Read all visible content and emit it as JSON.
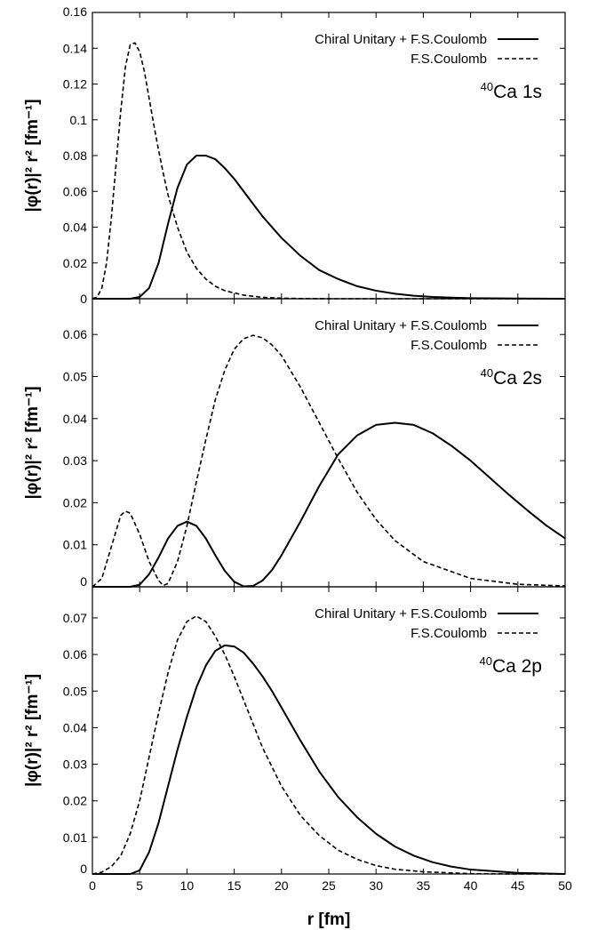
{
  "chart_data": [
    {
      "type": "line",
      "panel_label": {
        "sup": "40",
        "text": "Ca 1s"
      },
      "ylabel": "|φ(r)|² r² [fm⁻¹]",
      "xlim": [
        0,
        50
      ],
      "ylim": [
        0,
        0.16
      ],
      "yticks": [
        "0",
        "0.02",
        "0.04",
        "0.06",
        "0.08",
        "0.1",
        "0.12",
        "0.14",
        "0.16"
      ],
      "yticks_values": [
        0,
        0.02,
        0.04,
        0.06,
        0.08,
        0.1,
        0.12,
        0.14,
        0.16
      ],
      "legend": "top-right",
      "series": [
        {
          "name": "Chiral Unitary + F.S.Coulomb",
          "style": "solid",
          "x": [
            0,
            3,
            4,
            5,
            6,
            7,
            8,
            9,
            10,
            11,
            12,
            13,
            14,
            15,
            16,
            17,
            18,
            20,
            22,
            24,
            26,
            28,
            30,
            32,
            34,
            36,
            38,
            40,
            45,
            50
          ],
          "y": [
            0,
            0,
            0,
            0.001,
            0.006,
            0.02,
            0.042,
            0.062,
            0.075,
            0.08,
            0.08,
            0.078,
            0.073,
            0.067,
            0.06,
            0.053,
            0.046,
            0.034,
            0.024,
            0.016,
            0.011,
            0.007,
            0.0045,
            0.0028,
            0.0017,
            0.001,
            0.0006,
            0.0003,
            0.0001,
            0
          ]
        },
        {
          "name": "F.S.Coulomb",
          "style": "dashed",
          "x": [
            0,
            0.5,
            1,
            1.5,
            2,
            2.5,
            3,
            3.5,
            4,
            4.5,
            5,
            5.5,
            6,
            6.5,
            7,
            7.5,
            8,
            9,
            10,
            11,
            12,
            13,
            14,
            16,
            18,
            20,
            22,
            25,
            30,
            50
          ],
          "y": [
            0,
            0.001,
            0.006,
            0.02,
            0.045,
            0.075,
            0.105,
            0.13,
            0.142,
            0.143,
            0.138,
            0.127,
            0.112,
            0.097,
            0.083,
            0.07,
            0.058,
            0.04,
            0.026,
            0.017,
            0.011,
            0.007,
            0.0045,
            0.002,
            0.0008,
            0.0003,
            0.0001,
            0,
            0,
            0
          ]
        }
      ]
    },
    {
      "type": "line",
      "panel_label": {
        "sup": "40",
        "text": "Ca 2s"
      },
      "ylabel": "|φ(r)|² r² [fm⁻¹]",
      "xlim": [
        0,
        50
      ],
      "ylim": [
        0,
        0.0685
      ],
      "yticks": [
        "0",
        "0.01",
        "0.02",
        "0.03",
        "0.04",
        "0.05",
        "0.06"
      ],
      "yticks_values": [
        0,
        0.01,
        0.02,
        0.03,
        0.04,
        0.05,
        0.06
      ],
      "legend": "top-right",
      "series": [
        {
          "name": "Chiral Unitary + F.S.Coulomb",
          "style": "solid",
          "x": [
            0,
            4,
            5,
            6,
            7,
            8,
            9,
            10,
            11,
            12,
            13,
            14,
            15,
            16,
            17,
            18,
            19,
            20,
            22,
            24,
            26,
            28,
            30,
            32,
            34,
            36,
            38,
            40,
            42,
            44,
            46,
            48,
            50
          ],
          "y": [
            0,
            0,
            0.0005,
            0.003,
            0.007,
            0.0115,
            0.0145,
            0.0155,
            0.0145,
            0.0115,
            0.0075,
            0.0038,
            0.0012,
            0.0001,
            0.0002,
            0.0015,
            0.004,
            0.0075,
            0.0155,
            0.024,
            0.0315,
            0.036,
            0.0385,
            0.039,
            0.0385,
            0.0365,
            0.0335,
            0.03,
            0.026,
            0.022,
            0.0182,
            0.0146,
            0.0115
          ]
        },
        {
          "name": "F.S.Coulomb",
          "style": "dashed",
          "x": [
            0,
            1,
            2,
            3,
            3.5,
            4,
            5,
            6,
            7,
            7.5,
            8,
            9,
            10,
            11,
            12,
            13,
            14,
            15,
            16,
            17,
            18,
            19,
            20,
            22,
            24,
            26,
            28,
            30,
            32,
            35,
            40,
            45,
            50
          ],
          "y": [
            0,
            0.002,
            0.0095,
            0.017,
            0.018,
            0.0175,
            0.0125,
            0.006,
            0.0015,
            0.0003,
            0.0008,
            0.006,
            0.0145,
            0.025,
            0.035,
            0.0445,
            0.0515,
            0.0565,
            0.059,
            0.0598,
            0.0592,
            0.0575,
            0.055,
            0.0475,
            0.039,
            0.0305,
            0.0225,
            0.016,
            0.011,
            0.006,
            0.002,
            0.0006,
            0.0002
          ]
        }
      ]
    },
    {
      "type": "line",
      "panel_label": {
        "sup": "40",
        "text": "Ca 2p"
      },
      "ylabel": "|φ(r)|² r² [fm⁻¹]",
      "xlabel": "r [fm]",
      "xlim": [
        0,
        50
      ],
      "ylim": [
        0,
        0.0785
      ],
      "xticks": [
        "0",
        "5",
        "10",
        "15",
        "20",
        "25",
        "30",
        "35",
        "40",
        "45",
        "50"
      ],
      "xticks_values": [
        0,
        5,
        10,
        15,
        20,
        25,
        30,
        35,
        40,
        45,
        50
      ],
      "yticks": [
        "0",
        "0.01",
        "0.02",
        "0.03",
        "0.04",
        "0.05",
        "0.06",
        "0.07"
      ],
      "yticks_values": [
        0,
        0.01,
        0.02,
        0.03,
        0.04,
        0.05,
        0.06,
        0.07
      ],
      "legend": "top-right",
      "series": [
        {
          "name": "Chiral Unitary + F.S.Coulomb",
          "style": "solid",
          "x": [
            0,
            4,
            5,
            6,
            7,
            8,
            9,
            10,
            11,
            12,
            13,
            14,
            15,
            16,
            17,
            18,
            19,
            20,
            22,
            24,
            26,
            28,
            30,
            32,
            34,
            36,
            38,
            40,
            45,
            50
          ],
          "y": [
            0,
            0,
            0.001,
            0.006,
            0.014,
            0.024,
            0.034,
            0.043,
            0.051,
            0.057,
            0.061,
            0.0625,
            0.0622,
            0.0605,
            0.0575,
            0.054,
            0.05,
            0.0455,
            0.0365,
            0.028,
            0.021,
            0.0155,
            0.011,
            0.0075,
            0.005,
            0.0032,
            0.002,
            0.0012,
            0.0003,
            0
          ]
        },
        {
          "name": "F.S.Coulomb",
          "style": "dashed",
          "x": [
            0,
            1,
            2,
            3,
            4,
            5,
            6,
            7,
            8,
            9,
            10,
            11,
            12,
            13,
            14,
            15,
            16,
            17,
            18,
            20,
            22,
            24,
            26,
            28,
            30,
            32,
            35,
            40,
            45,
            50
          ],
          "y": [
            0,
            0.0005,
            0.002,
            0.005,
            0.011,
            0.02,
            0.032,
            0.044,
            0.055,
            0.064,
            0.069,
            0.0705,
            0.069,
            0.065,
            0.06,
            0.054,
            0.0475,
            0.041,
            0.0345,
            0.024,
            0.016,
            0.0105,
            0.0065,
            0.004,
            0.0023,
            0.0013,
            0.0006,
            0.0001,
            0,
            0
          ]
        }
      ]
    }
  ]
}
